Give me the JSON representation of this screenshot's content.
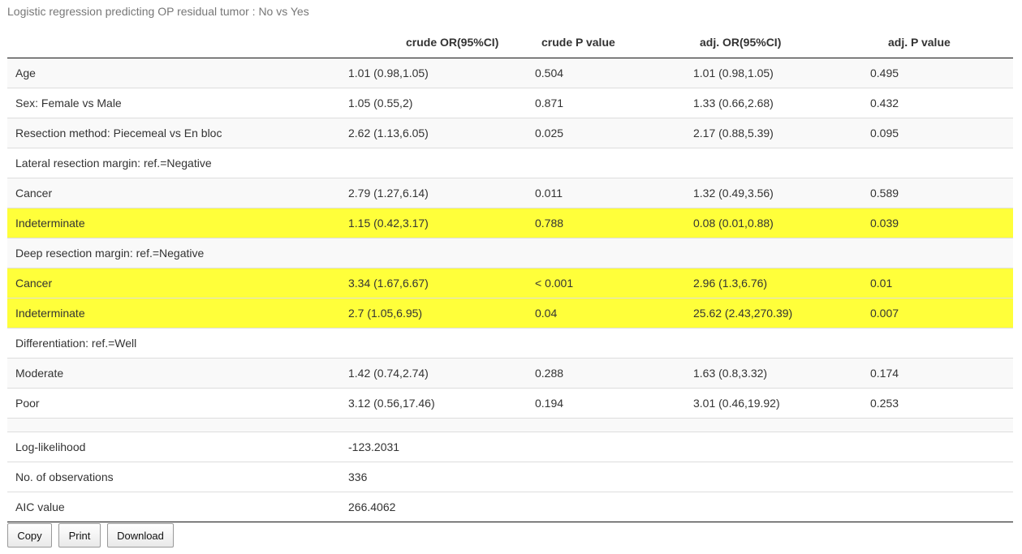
{
  "caption": "Logistic regression predicting OP residual tumor : No vs Yes",
  "headers": [
    "",
    "crude OR(95%CI)",
    "crude P value",
    "adj. OR(95%CI)",
    "adj. P value"
  ],
  "rows": [
    {
      "label": "Age",
      "crude_or": "1.01 (0.98,1.05)",
      "crude_p": "0.504",
      "adj_or": "1.01 (0.98,1.05)",
      "adj_p": "0.495"
    },
    {
      "label": "Sex: Female vs Male",
      "crude_or": "1.05 (0.55,2)",
      "crude_p": "0.871",
      "adj_or": "1.33 (0.66,2.68)",
      "adj_p": "0.432"
    },
    {
      "label": "Resection method: Piecemeal vs En bloc",
      "crude_or": "2.62 (1.13,6.05)",
      "crude_p": "0.025",
      "adj_or": "2.17 (0.88,5.39)",
      "adj_p": "0.095"
    },
    {
      "label": "Lateral resection margin: ref.=Negative",
      "crude_or": "",
      "crude_p": "",
      "adj_or": "",
      "adj_p": ""
    },
    {
      "label": "Cancer",
      "crude_or": "2.79 (1.27,6.14)",
      "crude_p": "0.011",
      "adj_or": "1.32 (0.49,3.56)",
      "adj_p": "0.589"
    },
    {
      "label": "Indeterminate",
      "crude_or": "1.15 (0.42,3.17)",
      "crude_p": "0.788",
      "adj_or": "0.08 (0.01,0.88)",
      "adj_p": "0.039"
    },
    {
      "label": "Deep resection margin: ref.=Negative",
      "crude_or": "",
      "crude_p": "",
      "adj_or": "",
      "adj_p": ""
    },
    {
      "label": "Cancer",
      "crude_or": "3.34 (1.67,6.67)",
      "crude_p": "< 0.001",
      "adj_or": "2.96 (1.3,6.76)",
      "adj_p": "0.01"
    },
    {
      "label": "Indeterminate",
      "crude_or": "2.7 (1.05,6.95)",
      "crude_p": "0.04",
      "adj_or": "25.62 (2.43,270.39)",
      "adj_p": "0.007"
    },
    {
      "label": "Differentiation: ref.=Well",
      "crude_or": "",
      "crude_p": "",
      "adj_or": "",
      "adj_p": ""
    },
    {
      "label": "Moderate",
      "crude_or": "1.42 (0.74,2.74)",
      "crude_p": "0.288",
      "adj_or": "1.63 (0.8,3.32)",
      "adj_p": "0.174"
    },
    {
      "label": "Poor",
      "crude_or": "3.12 (0.56,17.46)",
      "crude_p": "0.194",
      "adj_or": "3.01 (0.46,19.92)",
      "adj_p": "0.253"
    }
  ],
  "summary": [
    {
      "label": "Log-likelihood",
      "value": "-123.2031"
    },
    {
      "label": "No. of observations",
      "value": "336"
    },
    {
      "label": "AIC value",
      "value": "266.4062"
    }
  ],
  "buttons": {
    "copy": "Copy",
    "print": "Print",
    "download": "Download"
  },
  "colors": {
    "highlight": "#ffff3a",
    "stripe": "#f9f9f9"
  }
}
